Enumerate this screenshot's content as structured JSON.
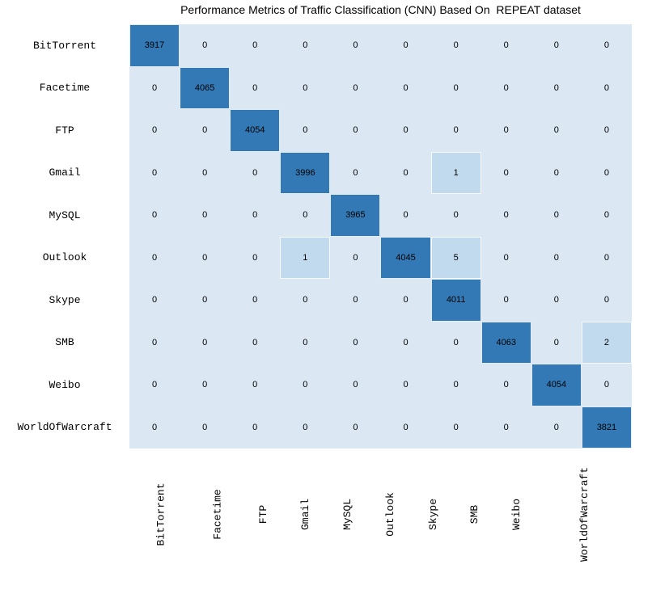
{
  "title": "Performance Metrics of Traffic Classification (CNN) Based On  REPEAT dataset",
  "chart_data": {
    "type": "heatmap",
    "title": "Performance Metrics of Traffic Classification (CNN) Based On  REPEAT dataset",
    "categories": [
      "BitTorrent",
      "Facetime",
      "FTP",
      "Gmail",
      "MySQL",
      "Outlook",
      "Skype",
      "SMB",
      "Weibo",
      "WorldOfWarcraft"
    ],
    "row_labels": [
      "BitTorrent",
      "Facetime",
      "FTP",
      "Gmail",
      "MySQL",
      "Outlook",
      "Skype",
      "SMB",
      "Weibo",
      "WorldOfWarcraft"
    ],
    "col_labels": [
      "BitTorrent",
      "Facetime",
      "FTP",
      "Gmail",
      "MySQL",
      "Outlook",
      "Skype",
      "SMB",
      "Weibo",
      "WorldOfWarcraft"
    ],
    "matrix": [
      [
        3917,
        0,
        0,
        0,
        0,
        0,
        0,
        0,
        0,
        0
      ],
      [
        0,
        4065,
        0,
        0,
        0,
        0,
        0,
        0,
        0,
        0
      ],
      [
        0,
        0,
        4054,
        0,
        0,
        0,
        0,
        0,
        0,
        0
      ],
      [
        0,
        0,
        0,
        3996,
        0,
        0,
        1,
        0,
        0,
        0
      ],
      [
        0,
        0,
        0,
        0,
        3965,
        0,
        0,
        0,
        0,
        0
      ],
      [
        0,
        0,
        0,
        1,
        0,
        4045,
        5,
        0,
        0,
        0
      ],
      [
        0,
        0,
        0,
        0,
        0,
        0,
        4011,
        0,
        0,
        0
      ],
      [
        0,
        0,
        0,
        0,
        0,
        0,
        0,
        4063,
        0,
        2
      ],
      [
        0,
        0,
        0,
        0,
        0,
        0,
        0,
        0,
        4054,
        0
      ],
      [
        0,
        0,
        0,
        0,
        0,
        0,
        0,
        0,
        0,
        3821
      ]
    ],
    "color_scale": {
      "zero": "#dbe8f4",
      "low": "#c1daee",
      "high": "#3379b5",
      "high_min": 1000
    },
    "grid": "off",
    "legend": "none",
    "x_tick_rotation": -90
  }
}
